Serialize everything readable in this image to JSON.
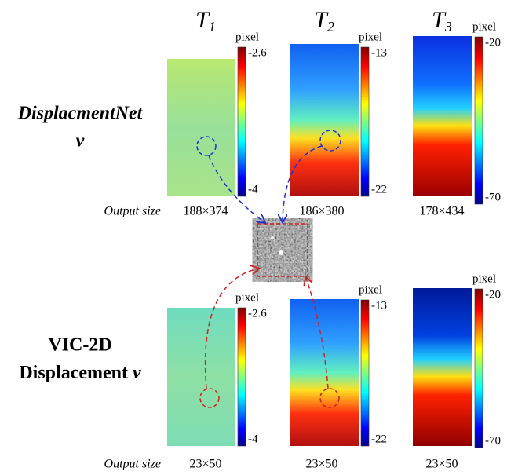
{
  "columns": [
    {
      "main": "T",
      "sub": "1"
    },
    {
      "main": "T",
      "sub": "2"
    },
    {
      "main": "T",
      "sub": "3"
    }
  ],
  "rows": [
    {
      "label": [
        "DisplacmentNet",
        "v"
      ],
      "output_label": "Output size",
      "sizes": [
        "188×374",
        "186×380",
        "178×434"
      ],
      "colorbars": [
        {
          "unit": "pixel",
          "top": -2.6,
          "bottom": -4
        },
        {
          "unit": "pixel",
          "top": -13,
          "bottom": -22
        },
        {
          "unit": "pixel",
          "top": -20,
          "bottom": -70
        }
      ]
    },
    {
      "label": [
        "VIC-2D",
        "Displacement",
        "v"
      ],
      "output_label": "Output size",
      "sizes": [
        "23×50",
        "23×50",
        "23×50"
      ],
      "colorbars": [
        {
          "unit": "pixel",
          "top": -2.6,
          "bottom": -4
        },
        {
          "unit": "pixel",
          "top": -13,
          "bottom": -22
        },
        {
          "unit": "pixel",
          "top": -20,
          "bottom": -70
        }
      ]
    }
  ]
}
